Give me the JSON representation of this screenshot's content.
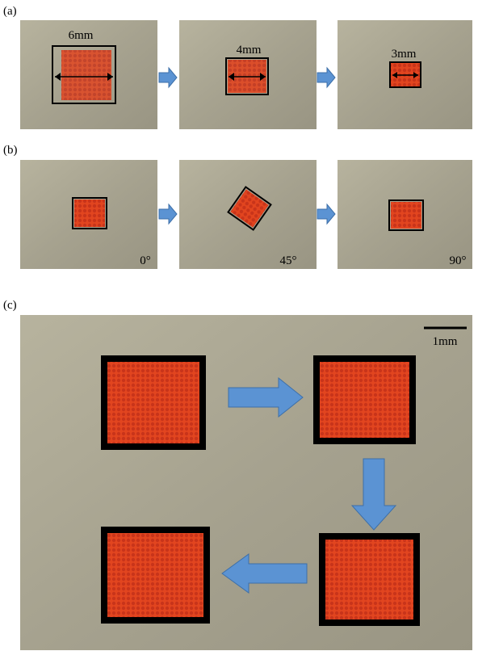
{
  "panels": [
    {
      "label": "(a)",
      "annotations": [
        "6mm",
        "4mm",
        "3mm"
      ]
    },
    {
      "label": "(b)",
      "annotations": [
        "0°",
        "45°",
        "90°"
      ]
    },
    {
      "label": "(c)",
      "annotations": [
        "1mm"
      ]
    }
  ]
}
